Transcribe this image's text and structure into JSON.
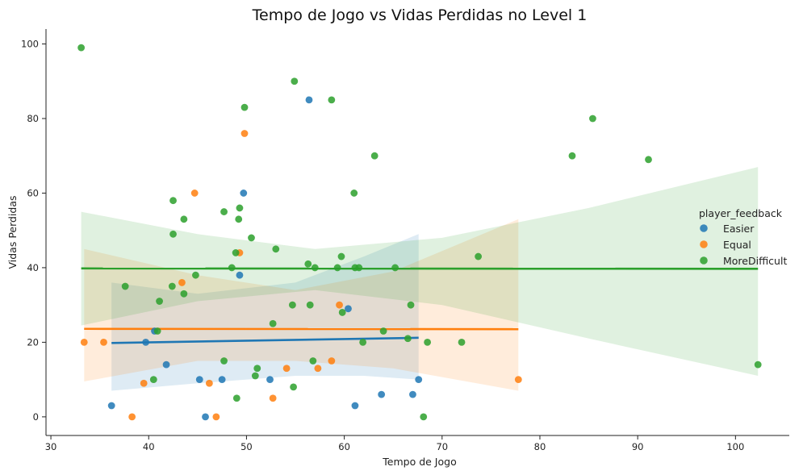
{
  "chart_data": {
    "type": "scatter",
    "title": "Tempo de Jogo vs Vidas Perdidas no Level 1",
    "xlabel": "Tempo de Jogo",
    "ylabel": "Vidas Perdidas",
    "xlim": [
      29.5,
      105.5
    ],
    "ylim": [
      -5,
      104
    ],
    "xticks": [
      30,
      40,
      50,
      60,
      70,
      80,
      90,
      100
    ],
    "yticks": [
      0,
      20,
      40,
      60,
      80,
      100
    ],
    "grid": false,
    "legend": {
      "title": "player_feedback",
      "position": "right"
    },
    "series": [
      {
        "name": "Easier",
        "color": "#1f77b4",
        "points": [
          [
            36.2,
            3
          ],
          [
            39.7,
            20
          ],
          [
            40.6,
            23
          ],
          [
            41.8,
            14
          ],
          [
            45.2,
            10
          ],
          [
            45.8,
            0
          ],
          [
            47.5,
            10
          ],
          [
            49.3,
            38
          ],
          [
            49.7,
            60
          ],
          [
            52.4,
            10
          ],
          [
            56.4,
            85
          ],
          [
            60.4,
            29
          ],
          [
            61.1,
            3
          ],
          [
            63.8,
            6
          ],
          [
            67.0,
            6
          ],
          [
            67.6,
            10
          ]
        ],
        "fit": {
          "x": [
            36.2,
            67.6
          ],
          "y": [
            19.8,
            21.2
          ]
        },
        "ci": {
          "x": [
            36.2,
            45,
            55,
            62,
            67.6
          ],
          "upper": [
            36,
            33,
            36,
            43,
            49
          ],
          "lower": [
            7,
            9,
            11,
            11,
            10
          ]
        }
      },
      {
        "name": "Equal",
        "color": "#ff7f0e",
        "points": [
          [
            33.4,
            20
          ],
          [
            35.4,
            20
          ],
          [
            38.3,
            0
          ],
          [
            39.5,
            9
          ],
          [
            43.4,
            36
          ],
          [
            44.7,
            60
          ],
          [
            46.2,
            9
          ],
          [
            46.9,
            0
          ],
          [
            49.3,
            44
          ],
          [
            49.8,
            76
          ],
          [
            52.7,
            5
          ],
          [
            54.1,
            13
          ],
          [
            57.3,
            13
          ],
          [
            58.7,
            15
          ],
          [
            59.5,
            30
          ],
          [
            77.8,
            10
          ]
        ],
        "fit": {
          "x": [
            33.4,
            77.8
          ],
          "y": [
            23.6,
            23.5
          ]
        },
        "ci": {
          "x": [
            33.4,
            45,
            55,
            65,
            77.8
          ],
          "upper": [
            45,
            38,
            34,
            39,
            53
          ],
          "lower": [
            9.5,
            15,
            15,
            13,
            7
          ]
        }
      },
      {
        "name": "MoreDifficult",
        "color": "#2ca02c",
        "points": [
          [
            33.1,
            99
          ],
          [
            37.6,
            35
          ],
          [
            40.5,
            10
          ],
          [
            40.9,
            23
          ],
          [
            41.1,
            31
          ],
          [
            42.4,
            35
          ],
          [
            42.5,
            58
          ],
          [
            42.5,
            49
          ],
          [
            43.6,
            53
          ],
          [
            43.6,
            33
          ],
          [
            44.8,
            38
          ],
          [
            47.7,
            55
          ],
          [
            47.7,
            15
          ],
          [
            48.5,
            40
          ],
          [
            48.9,
            44
          ],
          [
            49.0,
            5
          ],
          [
            49.2,
            53
          ],
          [
            49.3,
            56
          ],
          [
            49.8,
            83
          ],
          [
            50.5,
            48
          ],
          [
            50.9,
            11
          ],
          [
            51.1,
            13
          ],
          [
            52.7,
            25
          ],
          [
            53.0,
            45
          ],
          [
            54.7,
            30
          ],
          [
            54.8,
            8
          ],
          [
            54.9,
            90
          ],
          [
            56.3,
            41
          ],
          [
            56.5,
            30
          ],
          [
            56.8,
            15
          ],
          [
            57.0,
            40
          ],
          [
            58.7,
            85
          ],
          [
            59.3,
            40
          ],
          [
            59.7,
            43
          ],
          [
            59.8,
            28
          ],
          [
            61.0,
            60
          ],
          [
            61.1,
            40
          ],
          [
            61.5,
            40
          ],
          [
            61.9,
            20
          ],
          [
            63.1,
            70
          ],
          [
            64.0,
            23
          ],
          [
            65.2,
            40
          ],
          [
            66.5,
            21
          ],
          [
            66.8,
            30
          ],
          [
            68.1,
            0
          ],
          [
            68.5,
            20
          ],
          [
            72.0,
            20
          ],
          [
            73.7,
            43
          ],
          [
            83.3,
            70
          ],
          [
            85.4,
            80
          ],
          [
            91.1,
            69
          ],
          [
            102.3,
            14
          ]
        ],
        "fit": {
          "x": [
            33.1,
            102.3
          ],
          "y": [
            39.8,
            39.7
          ]
        },
        "ci": {
          "x": [
            33.1,
            45,
            57,
            70,
            85,
            102.3
          ],
          "upper": [
            55,
            49,
            45,
            48,
            56,
            67
          ],
          "lower": [
            24.5,
            31,
            34,
            30,
            21,
            11
          ]
        }
      }
    ]
  }
}
